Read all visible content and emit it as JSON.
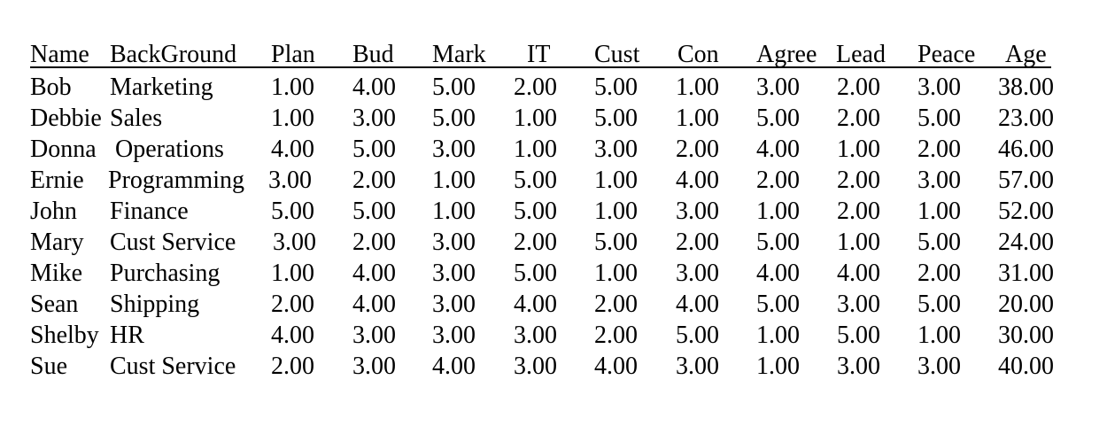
{
  "headers": [
    "Name",
    "BackGround",
    "Plan",
    "Bud",
    "Mark",
    "IT",
    "Cust",
    "Con",
    "Agree",
    "Lead",
    "Peace",
    "Age"
  ],
  "rows": [
    [
      "Bob",
      "Marketing",
      "1.00",
      "4.00",
      "5.00",
      "2.00",
      "5.00",
      "1.00",
      "3.00",
      "2.00",
      "3.00",
      "38.00"
    ],
    [
      "Debbie",
      "Sales",
      "1.00",
      "3.00",
      "5.00",
      "1.00",
      "5.00",
      "1.00",
      "5.00",
      "2.00",
      "5.00",
      "23.00"
    ],
    [
      "Donna",
      "Operations",
      "4.00",
      "5.00",
      "3.00",
      "1.00",
      "3.00",
      "2.00",
      "4.00",
      "1.00",
      "2.00",
      "46.00"
    ],
    [
      "Ernie",
      "Programming",
      "3.00",
      "2.00",
      "1.00",
      "5.00",
      "1.00",
      "4.00",
      "2.00",
      "2.00",
      "3.00",
      "57.00"
    ],
    [
      "John",
      "Finance",
      "5.00",
      "5.00",
      "1.00",
      "5.00",
      "1.00",
      "3.00",
      "1.00",
      "2.00",
      "1.00",
      "52.00"
    ],
    [
      "Mary",
      "Cust Service",
      "3.00",
      "2.00",
      "3.00",
      "2.00",
      "5.00",
      "2.00",
      "5.00",
      "1.00",
      "5.00",
      "24.00"
    ],
    [
      "Mike",
      "Purchasing",
      "1.00",
      "4.00",
      "3.00",
      "5.00",
      "1.00",
      "3.00",
      "4.00",
      "4.00",
      "2.00",
      "31.00"
    ],
    [
      "Sean",
      "Shipping",
      "2.00",
      "4.00",
      "3.00",
      "4.00",
      "2.00",
      "4.00",
      "5.00",
      "3.00",
      "5.00",
      "20.00"
    ],
    [
      "Shelby",
      "HR",
      "4.00",
      "3.00",
      "3.00",
      "3.00",
      "2.00",
      "5.00",
      "1.00",
      "5.00",
      "1.00",
      "30.00"
    ],
    [
      "Sue",
      "Cust Service",
      "2.00",
      "3.00",
      "4.00",
      "3.00",
      "4.00",
      "3.00",
      "1.00",
      "3.00",
      "3.00",
      "40.00"
    ]
  ]
}
